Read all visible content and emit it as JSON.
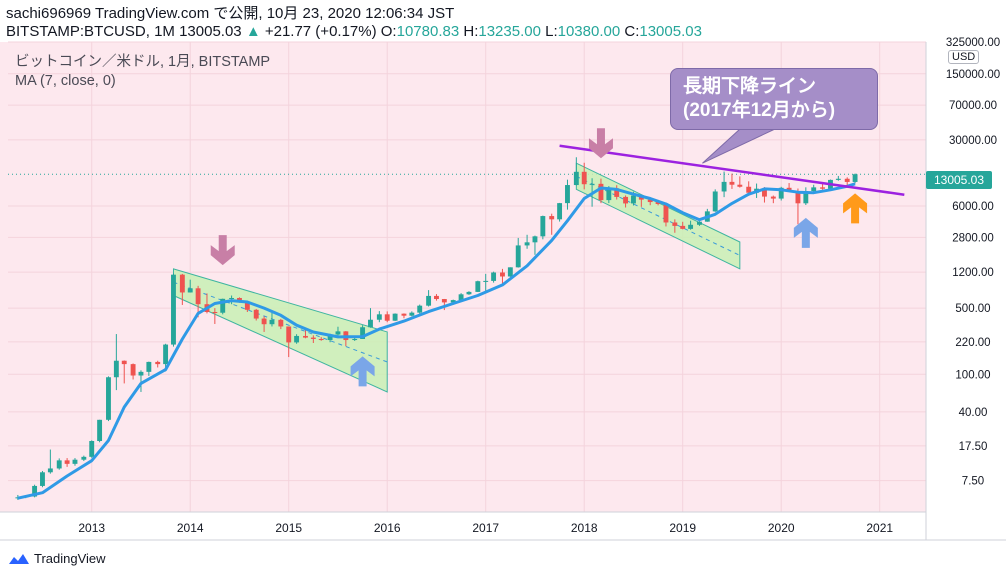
{
  "header": {
    "line1": "sachi696969 TradingView.com で公開, 10月 23, 2020 12:06:34 JST",
    "symbol": "BITSTAMP:BTCUSD, 1M 13005.03",
    "change": "+21.77 (+0.17%)",
    "o_label": "O:",
    "o_value": "10780.83",
    "h_label": "H:",
    "h_value": "13235.00",
    "l_label": "L:",
    "l_value": "10380.00",
    "c_label": "C:",
    "c_value": "13005.03"
  },
  "legend": {
    "title": "ビットコイン／米ドル, 1月, BITSTAMP",
    "indicator": "MA (7, close, 0)"
  },
  "callout": {
    "line1": "長期下降ライン",
    "line2": "(2017年12月から)"
  },
  "currency_label": "USD",
  "last_price_tag": "13005.03",
  "logo_text": "TradingView",
  "colors": {
    "background": "#fde8ee",
    "up_candle": "#26a69a",
    "down_candle": "#ef5350",
    "ma_line": "#2f9ae6",
    "trend_line": "#9c22e0",
    "channel_fill": "#c8f0b4",
    "channel_border": "#3fb5a0",
    "arrow_down": "#c87fa6",
    "arrow_up_blue": "#7aa6e8",
    "arrow_up_orange": "#ff9a1a",
    "callout_bg": "#a58ec8"
  },
  "chart_data": {
    "type": "candlestick",
    "title": "ビットコイン／米ドル, 1月, BITSTAMP",
    "interval": "1M",
    "y_scale": "log",
    "ylim": [
      3.5,
      325000
    ],
    "y_ticks": [
      7.5,
      17.5,
      40.0,
      100.0,
      220.0,
      500.0,
      1200.0,
      2800.0,
      6000.0,
      13005.03,
      30000.0,
      70000.0,
      150000.0,
      325000.0
    ],
    "y_tick_labels": [
      "7.50",
      "17.50",
      "40.00",
      "100.00",
      "220.00",
      "500.00",
      "1200.00",
      "2800.00",
      "6000.00",
      "13005.03",
      "30000.00",
      "70000.00",
      "150000.00",
      "325000.00"
    ],
    "x_tick_labels": [
      "2013",
      "2014",
      "2015",
      "2016",
      "2017",
      "2018",
      "2019",
      "2020",
      "2021"
    ],
    "x_ticks": [
      2013.0,
      2014.0,
      2015.0,
      2016.0,
      2017.0,
      2018.0,
      2019.0,
      2020.0,
      2021.0
    ],
    "xlim": [
      2012.15,
      2021.47
    ],
    "candles": [
      {
        "t": 2012.25,
        "o": 4.9,
        "h": 5.3,
        "l": 4.7,
        "c": 5.0
      },
      {
        "t": 2012.33,
        "o": 5.0,
        "h": 5.2,
        "l": 4.9,
        "c": 5.1
      },
      {
        "t": 2012.42,
        "o": 5.1,
        "h": 6.8,
        "l": 5.0,
        "c": 6.6
      },
      {
        "t": 2012.5,
        "o": 6.6,
        "h": 9.5,
        "l": 6.4,
        "c": 9.2
      },
      {
        "t": 2012.58,
        "o": 9.2,
        "h": 16.0,
        "l": 8.9,
        "c": 10.1
      },
      {
        "t": 2012.67,
        "o": 10.1,
        "h": 12.9,
        "l": 9.8,
        "c": 12.3
      },
      {
        "t": 2012.75,
        "o": 12.3,
        "h": 13.0,
        "l": 10.5,
        "c": 11.3
      },
      {
        "t": 2012.83,
        "o": 11.3,
        "h": 13.0,
        "l": 10.8,
        "c": 12.5
      },
      {
        "t": 2012.92,
        "o": 12.5,
        "h": 13.8,
        "l": 12.1,
        "c": 13.4
      },
      {
        "t": 2013.0,
        "o": 13.4,
        "h": 20.0,
        "l": 13.1,
        "c": 19.7
      },
      {
        "t": 2013.08,
        "o": 19.7,
        "h": 33.0,
        "l": 19.1,
        "c": 33.0
      },
      {
        "t": 2013.17,
        "o": 33.0,
        "h": 95.0,
        "l": 32.0,
        "c": 93.0
      },
      {
        "t": 2013.25,
        "o": 93.0,
        "h": 266.0,
        "l": 68.0,
        "c": 139.0
      },
      {
        "t": 2013.33,
        "o": 139.0,
        "h": 140.0,
        "l": 80.0,
        "c": 128.0
      },
      {
        "t": 2013.42,
        "o": 128.0,
        "h": 130.0,
        "l": 88.0,
        "c": 97.0
      },
      {
        "t": 2013.5,
        "o": 97.0,
        "h": 110.0,
        "l": 65.0,
        "c": 106.0
      },
      {
        "t": 2013.58,
        "o": 106.0,
        "h": 136.0,
        "l": 96.0,
        "c": 135.0
      },
      {
        "t": 2013.67,
        "o": 135.0,
        "h": 139.0,
        "l": 118.0,
        "c": 128.0
      },
      {
        "t": 2013.75,
        "o": 128.0,
        "h": 210.0,
        "l": 107.0,
        "c": 206.0
      },
      {
        "t": 2013.83,
        "o": 206.0,
        "h": 1163.0,
        "l": 196.0,
        "c": 1129.0
      },
      {
        "t": 2013.92,
        "o": 1129.0,
        "h": 1150.0,
        "l": 540.0,
        "c": 732.0
      },
      {
        "t": 2014.0,
        "o": 732.0,
        "h": 1000.0,
        "l": 730.0,
        "c": 810.0
      },
      {
        "t": 2014.08,
        "o": 810.0,
        "h": 860.0,
        "l": 400.0,
        "c": 550.0
      },
      {
        "t": 2014.17,
        "o": 550.0,
        "h": 715.0,
        "l": 440.0,
        "c": 455.0
      },
      {
        "t": 2014.25,
        "o": 455.0,
        "h": 500.0,
        "l": 340.0,
        "c": 447.0
      },
      {
        "t": 2014.33,
        "o": 447.0,
        "h": 630.0,
        "l": 430.0,
        "c": 627.0
      },
      {
        "t": 2014.42,
        "o": 627.0,
        "h": 680.0,
        "l": 550.0,
        "c": 640.0
      },
      {
        "t": 2014.5,
        "o": 640.0,
        "h": 650.0,
        "l": 570.0,
        "c": 585.0
      },
      {
        "t": 2014.58,
        "o": 585.0,
        "h": 600.0,
        "l": 455.0,
        "c": 480.0
      },
      {
        "t": 2014.67,
        "o": 480.0,
        "h": 490.0,
        "l": 370.0,
        "c": 388.0
      },
      {
        "t": 2014.75,
        "o": 388.0,
        "h": 410.0,
        "l": 280.0,
        "c": 338.0
      },
      {
        "t": 2014.83,
        "o": 338.0,
        "h": 460.0,
        "l": 320.0,
        "c": 376.0
      },
      {
        "t": 2014.92,
        "o": 376.0,
        "h": 385.0,
        "l": 300.0,
        "c": 320.0
      },
      {
        "t": 2015.0,
        "o": 320.0,
        "h": 320.0,
        "l": 152.0,
        "c": 217.0
      },
      {
        "t": 2015.08,
        "o": 217.0,
        "h": 265.0,
        "l": 210.0,
        "c": 254.0
      },
      {
        "t": 2015.17,
        "o": 254.0,
        "h": 300.0,
        "l": 240.0,
        "c": 244.0
      },
      {
        "t": 2015.25,
        "o": 244.0,
        "h": 258.0,
        "l": 214.0,
        "c": 236.0
      },
      {
        "t": 2015.33,
        "o": 236.0,
        "h": 247.0,
        "l": 226.0,
        "c": 230.0
      },
      {
        "t": 2015.42,
        "o": 230.0,
        "h": 268.0,
        "l": 218.0,
        "c": 263.0
      },
      {
        "t": 2015.5,
        "o": 263.0,
        "h": 318.0,
        "l": 251.0,
        "c": 284.0
      },
      {
        "t": 2015.58,
        "o": 284.0,
        "h": 286.0,
        "l": 198.0,
        "c": 230.0
      },
      {
        "t": 2015.67,
        "o": 230.0,
        "h": 245.0,
        "l": 225.0,
        "c": 236.0
      },
      {
        "t": 2015.75,
        "o": 236.0,
        "h": 330.0,
        "l": 236.0,
        "c": 314.0
      },
      {
        "t": 2015.83,
        "o": 314.0,
        "h": 500.0,
        "l": 310.0,
        "c": 377.0
      },
      {
        "t": 2015.92,
        "o": 377.0,
        "h": 465.0,
        "l": 355.0,
        "c": 430.0
      },
      {
        "t": 2016.0,
        "o": 430.0,
        "h": 462.0,
        "l": 355.0,
        "c": 368.0
      },
      {
        "t": 2016.08,
        "o": 368.0,
        "h": 440.0,
        "l": 365.0,
        "c": 437.0
      },
      {
        "t": 2016.17,
        "o": 437.0,
        "h": 440.0,
        "l": 391.0,
        "c": 416.0
      },
      {
        "t": 2016.25,
        "o": 416.0,
        "h": 462.0,
        "l": 410.0,
        "c": 448.0
      },
      {
        "t": 2016.33,
        "o": 448.0,
        "h": 545.0,
        "l": 438.0,
        "c": 531.0
      },
      {
        "t": 2016.42,
        "o": 531.0,
        "h": 775.0,
        "l": 520.0,
        "c": 673.0
      },
      {
        "t": 2016.5,
        "o": 673.0,
        "h": 704.0,
        "l": 600.0,
        "c": 624.0
      },
      {
        "t": 2016.58,
        "o": 624.0,
        "h": 625.0,
        "l": 477.0,
        "c": 575.0
      },
      {
        "t": 2016.67,
        "o": 575.0,
        "h": 615.0,
        "l": 570.0,
        "c": 608.0
      },
      {
        "t": 2016.75,
        "o": 608.0,
        "h": 720.0,
        "l": 605.0,
        "c": 700.0
      },
      {
        "t": 2016.83,
        "o": 700.0,
        "h": 755.0,
        "l": 690.0,
        "c": 742.0
      },
      {
        "t": 2016.92,
        "o": 742.0,
        "h": 975.0,
        "l": 740.0,
        "c": 963.0
      },
      {
        "t": 2017.0,
        "o": 963.0,
        "h": 1150.0,
        "l": 750.0,
        "c": 970.0
      },
      {
        "t": 2017.08,
        "o": 970.0,
        "h": 1215.0,
        "l": 930.0,
        "c": 1190.0
      },
      {
        "t": 2017.17,
        "o": 1190.0,
        "h": 1300.0,
        "l": 890.0,
        "c": 1080.0
      },
      {
        "t": 2017.25,
        "o": 1080.0,
        "h": 1350.0,
        "l": 1070.0,
        "c": 1350.0
      },
      {
        "t": 2017.33,
        "o": 1350.0,
        "h": 2760.0,
        "l": 1340.0,
        "c": 2300.0
      },
      {
        "t": 2017.42,
        "o": 2300.0,
        "h": 2980.0,
        "l": 2120.0,
        "c": 2480.0
      },
      {
        "t": 2017.5,
        "o": 2480.0,
        "h": 2920.0,
        "l": 1830.0,
        "c": 2870.0
      },
      {
        "t": 2017.58,
        "o": 2870.0,
        "h": 4750.0,
        "l": 2670.0,
        "c": 4700.0
      },
      {
        "t": 2017.67,
        "o": 4700.0,
        "h": 4980.0,
        "l": 2980.0,
        "c": 4340.0
      },
      {
        "t": 2017.75,
        "o": 4340.0,
        "h": 6470.0,
        "l": 4110.0,
        "c": 6440.0
      },
      {
        "t": 2017.83,
        "o": 6440.0,
        "h": 11400.0,
        "l": 5500.0,
        "c": 10000.0
      },
      {
        "t": 2017.92,
        "o": 10000.0,
        "h": 19666.0,
        "l": 9900.0,
        "c": 13800.0
      },
      {
        "t": 2018.0,
        "o": 13800.0,
        "h": 17200.0,
        "l": 9000.0,
        "c": 10200.0
      },
      {
        "t": 2018.08,
        "o": 10200.0,
        "h": 11800.0,
        "l": 5900.0,
        "c": 10300.0
      },
      {
        "t": 2018.17,
        "o": 10300.0,
        "h": 11700.0,
        "l": 6430.0,
        "c": 6930.0
      },
      {
        "t": 2018.25,
        "o": 6930.0,
        "h": 9750.0,
        "l": 6450.0,
        "c": 9240.0
      },
      {
        "t": 2018.33,
        "o": 9240.0,
        "h": 9960.0,
        "l": 7030.0,
        "c": 7490.0
      },
      {
        "t": 2018.42,
        "o": 7490.0,
        "h": 7760.0,
        "l": 5790.0,
        "c": 6390.0
      },
      {
        "t": 2018.5,
        "o": 6390.0,
        "h": 8500.0,
        "l": 6080.0,
        "c": 7730.0
      },
      {
        "t": 2018.58,
        "o": 7730.0,
        "h": 7770.0,
        "l": 5880.0,
        "c": 7010.0
      },
      {
        "t": 2018.67,
        "o": 7010.0,
        "h": 7410.0,
        "l": 6120.0,
        "c": 6610.0
      },
      {
        "t": 2018.75,
        "o": 6610.0,
        "h": 6970.0,
        "l": 6100.0,
        "c": 6300.0
      },
      {
        "t": 2018.83,
        "o": 6300.0,
        "h": 6540.0,
        "l": 3650.0,
        "c": 4020.0
      },
      {
        "t": 2018.92,
        "o": 4020.0,
        "h": 4340.0,
        "l": 3130.0,
        "c": 3700.0
      },
      {
        "t": 2019.0,
        "o": 3700.0,
        "h": 4090.0,
        "l": 3400.0,
        "c": 3440.0
      },
      {
        "t": 2019.08,
        "o": 3440.0,
        "h": 4200.0,
        "l": 3370.0,
        "c": 3800.0
      },
      {
        "t": 2019.17,
        "o": 3800.0,
        "h": 4150.0,
        "l": 3700.0,
        "c": 4100.0
      },
      {
        "t": 2019.25,
        "o": 4100.0,
        "h": 5600.0,
        "l": 4090.0,
        "c": 5270.0
      },
      {
        "t": 2019.33,
        "o": 5270.0,
        "h": 9000.0,
        "l": 5200.0,
        "c": 8550.0
      },
      {
        "t": 2019.42,
        "o": 8550.0,
        "h": 13880.0,
        "l": 7450.0,
        "c": 10800.0
      },
      {
        "t": 2019.5,
        "o": 10800.0,
        "h": 13200.0,
        "l": 9100.0,
        "c": 10080.0
      },
      {
        "t": 2019.58,
        "o": 10080.0,
        "h": 12350.0,
        "l": 9400.0,
        "c": 9590.0
      },
      {
        "t": 2019.67,
        "o": 9590.0,
        "h": 10950.0,
        "l": 7710.0,
        "c": 8290.0
      },
      {
        "t": 2019.75,
        "o": 8290.0,
        "h": 10370.0,
        "l": 7300.0,
        "c": 9150.0
      },
      {
        "t": 2019.83,
        "o": 9150.0,
        "h": 9510.0,
        "l": 6530.0,
        "c": 7550.0
      },
      {
        "t": 2019.92,
        "o": 7550.0,
        "h": 7740.0,
        "l": 6430.0,
        "c": 7190.0
      },
      {
        "t": 2020.0,
        "o": 7190.0,
        "h": 9580.0,
        "l": 6860.0,
        "c": 9350.0
      },
      {
        "t": 2020.08,
        "o": 9350.0,
        "h": 10500.0,
        "l": 8450.0,
        "c": 8520.0
      },
      {
        "t": 2020.17,
        "o": 8520.0,
        "h": 9190.0,
        "l": 3850.0,
        "c": 6410.0
      },
      {
        "t": 2020.25,
        "o": 6410.0,
        "h": 9460.0,
        "l": 6150.0,
        "c": 8630.0
      },
      {
        "t": 2020.33,
        "o": 8630.0,
        "h": 10070.0,
        "l": 8110.0,
        "c": 9450.0
      },
      {
        "t": 2020.42,
        "o": 9450.0,
        "h": 10380.0,
        "l": 8920.0,
        "c": 9140.0
      },
      {
        "t": 2020.5,
        "o": 9140.0,
        "h": 11440.0,
        "l": 8900.0,
        "c": 11330.0
      },
      {
        "t": 2020.58,
        "o": 11330.0,
        "h": 12480.0,
        "l": 11110.0,
        "c": 11650.0
      },
      {
        "t": 2020.67,
        "o": 11650.0,
        "h": 12060.0,
        "l": 9890.0,
        "c": 10780.0
      },
      {
        "t": 2020.75,
        "o": 10780.83,
        "h": 13235.0,
        "l": 10380.0,
        "c": 13005.03
      }
    ],
    "ma_series": [
      {
        "t": 2012.25,
        "v": 4.9
      },
      {
        "t": 2012.5,
        "v": 5.6
      },
      {
        "t": 2012.75,
        "v": 8.4
      },
      {
        "t": 2013.0,
        "v": 12.2
      },
      {
        "t": 2013.17,
        "v": 20.0
      },
      {
        "t": 2013.33,
        "v": 45.0
      },
      {
        "t": 2013.5,
        "v": 80.0
      },
      {
        "t": 2013.75,
        "v": 112.0
      },
      {
        "t": 2013.92,
        "v": 235.0
      },
      {
        "t": 2014.08,
        "v": 440.0
      },
      {
        "t": 2014.25,
        "v": 560.0
      },
      {
        "t": 2014.42,
        "v": 600.0
      },
      {
        "t": 2014.58,
        "v": 580.0
      },
      {
        "t": 2014.75,
        "v": 500.0
      },
      {
        "t": 2014.92,
        "v": 420.0
      },
      {
        "t": 2015.08,
        "v": 330.0
      },
      {
        "t": 2015.25,
        "v": 280.0
      },
      {
        "t": 2015.5,
        "v": 248.0
      },
      {
        "t": 2015.75,
        "v": 250.0
      },
      {
        "t": 2015.92,
        "v": 300.0
      },
      {
        "t": 2016.17,
        "v": 365.0
      },
      {
        "t": 2016.42,
        "v": 460.0
      },
      {
        "t": 2016.67,
        "v": 560.0
      },
      {
        "t": 2016.92,
        "v": 680.0
      },
      {
        "t": 2017.17,
        "v": 880.0
      },
      {
        "t": 2017.42,
        "v": 1400.0
      },
      {
        "t": 2017.67,
        "v": 2600.0
      },
      {
        "t": 2017.83,
        "v": 4200.0
      },
      {
        "t": 2018.0,
        "v": 7200.0
      },
      {
        "t": 2018.17,
        "v": 9300.0
      },
      {
        "t": 2018.33,
        "v": 9000.0
      },
      {
        "t": 2018.5,
        "v": 8000.0
      },
      {
        "t": 2018.67,
        "v": 7200.0
      },
      {
        "t": 2018.83,
        "v": 6300.0
      },
      {
        "t": 2019.0,
        "v": 5100.0
      },
      {
        "t": 2019.17,
        "v": 4300.0
      },
      {
        "t": 2019.33,
        "v": 4900.0
      },
      {
        "t": 2019.5,
        "v": 6400.0
      },
      {
        "t": 2019.67,
        "v": 8000.0
      },
      {
        "t": 2019.83,
        "v": 9100.0
      },
      {
        "t": 2020.0,
        "v": 8900.0
      },
      {
        "t": 2020.17,
        "v": 8400.0
      },
      {
        "t": 2020.33,
        "v": 8300.0
      },
      {
        "t": 2020.5,
        "v": 8900.0
      },
      {
        "t": 2020.67,
        "v": 9700.0
      },
      {
        "t": 2020.75,
        "v": 10300.0
      }
    ],
    "trend_line": {
      "t1": 2017.75,
      "v1": 26000.0,
      "t2": 2021.25,
      "v2": 7900.0
    },
    "channels": [
      {
        "t1": 2013.83,
        "top1": 1300.0,
        "bot1": 680.0,
        "t2": 2016.0,
        "top2": 280.0,
        "bot2": 65.0
      },
      {
        "t1": 2017.92,
        "top1": 17000.0,
        "bot1": 9000.0,
        "t2": 2019.58,
        "top2": 2500.0,
        "bot2": 1300.0
      }
    ],
    "arrows": [
      {
        "dir": "down",
        "t": 2014.33,
        "v": 2000.0,
        "color": "arrow_down"
      },
      {
        "dir": "up",
        "t": 2015.75,
        "v": 110.0,
        "color": "arrow_up_blue"
      },
      {
        "dir": "down",
        "t": 2018.17,
        "v": 27000.0,
        "color": "arrow_down"
      },
      {
        "dir": "up",
        "t": 2020.25,
        "v": 3200.0,
        "color": "arrow_up_blue"
      },
      {
        "dir": "up",
        "t": 2020.75,
        "v": 5800.0,
        "color": "arrow_up_orange"
      }
    ]
  }
}
